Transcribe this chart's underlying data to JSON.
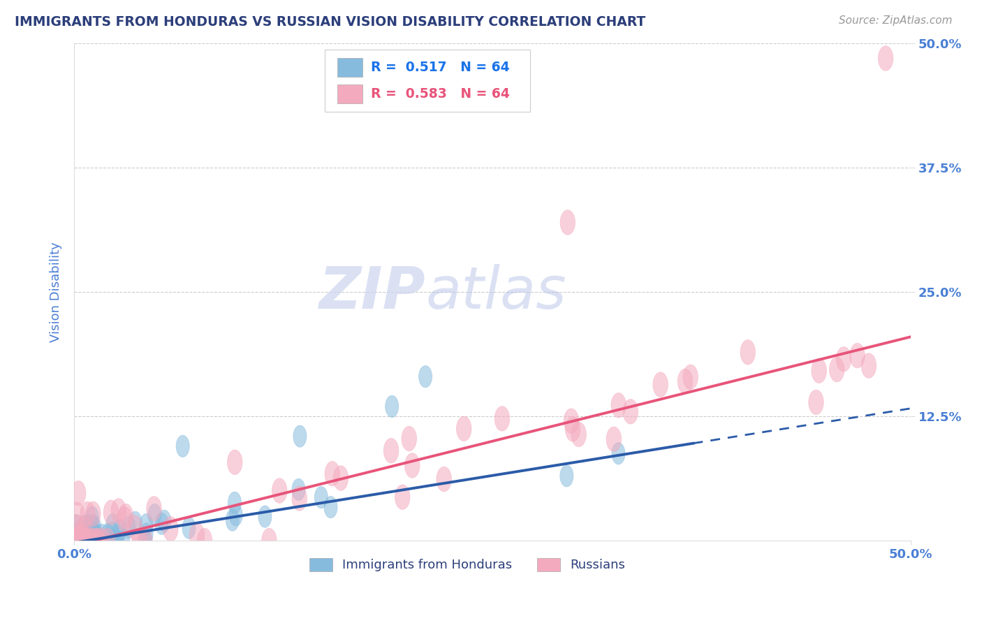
{
  "title": "IMMIGRANTS FROM HONDURAS VS RUSSIAN VISION DISABILITY CORRELATION CHART",
  "source": "Source: ZipAtlas.com",
  "ylabel": "Vision Disability",
  "xlim": [
    0.0,
    0.5
  ],
  "ylim": [
    0.0,
    0.5
  ],
  "xtick_labels": [
    "0.0%",
    "50.0%"
  ],
  "ytick_labels": [
    "12.5%",
    "25.0%",
    "37.5%",
    "50.0%"
  ],
  "ytick_vals": [
    0.125,
    0.25,
    0.375,
    0.5
  ],
  "blue_R": 0.517,
  "blue_N": 64,
  "pink_R": 0.583,
  "pink_N": 64,
  "blue_color": "#87BBDE",
  "pink_color": "#F4AABE",
  "blue_line_color": "#2B5BA8",
  "pink_line_color": "#E8547A",
  "title_color": "#2c3e7a",
  "tick_color": "#4a7fd4",
  "watermark_color": "#cdd5ee",
  "background_color": "#ffffff",
  "grid_color": "#cccccc",
  "legend_text_blue": "#1a73e8",
  "legend_text_pink": "#E8547A",
  "legend_box_edge": "#cccccc",
  "bottom_legend_color": "#2c3e7a",
  "blue_line_end_solid": 0.37,
  "pink_line_slope": 0.42,
  "pink_line_intercept": -0.005,
  "blue_line_slope": 0.27,
  "blue_line_intercept": -0.002
}
